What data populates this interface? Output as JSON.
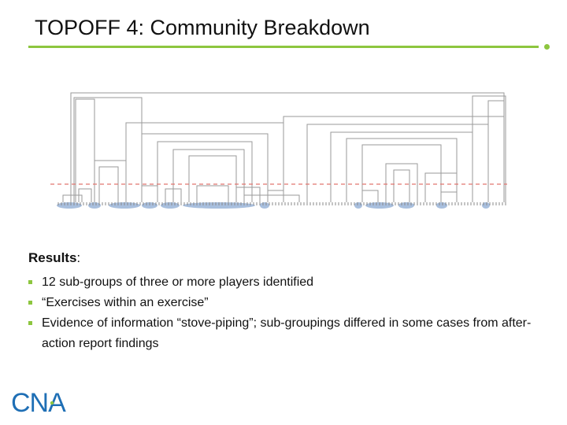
{
  "slide": {
    "title": "TOPOFF 4: Community Breakdown",
    "results_label": "Results",
    "results_colon": ":",
    "bullets": [
      "12 sub-groups of three or more players identified",
      "“Exercises within an exercise”",
      "Evidence of information “stove-piping”; sub-groupings differed in some cases from after-action report findings"
    ],
    "logo_text": "CNA"
  },
  "colors": {
    "accent": "#8dc63f",
    "cut_line": "#e2766f",
    "cluster_highlight": "#7a9ccc",
    "tree_lines": "#9a9a9a"
  },
  "icons": {
    "bullet": "square-bullet-icon",
    "logo": "cna-logo-icon"
  }
}
